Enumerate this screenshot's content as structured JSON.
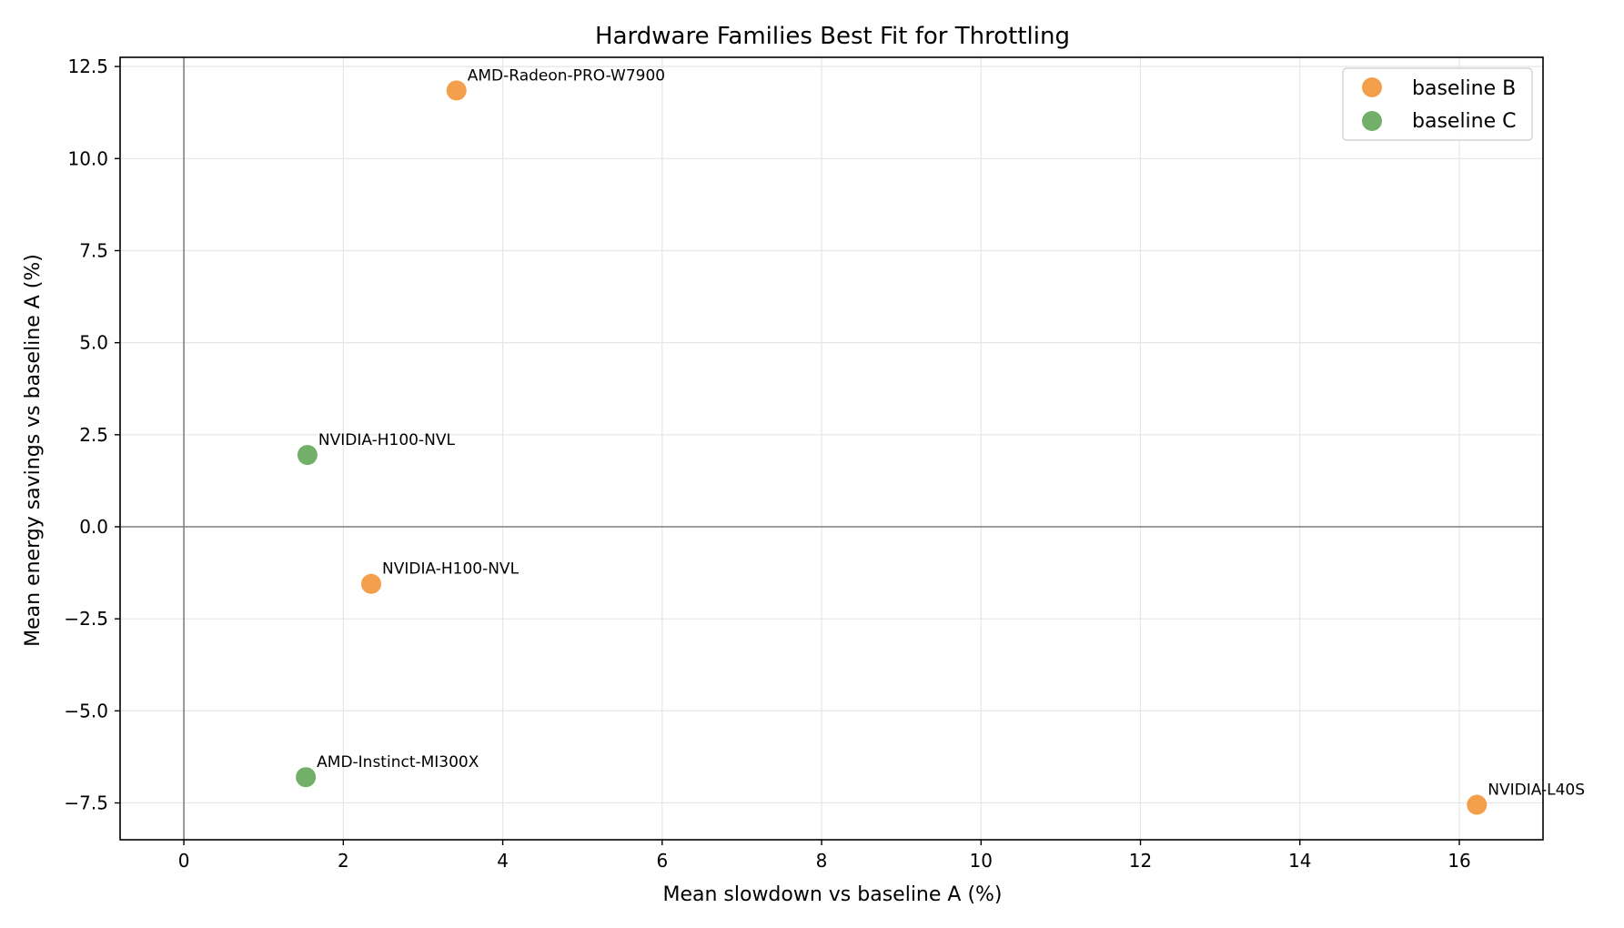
{
  "chart_data": {
    "type": "scatter",
    "title": "Hardware Families Best Fit for Throttling",
    "xlabel": "Mean slowdown vs baseline A (%)",
    "ylabel": "Mean energy savings vs baseline A (%)",
    "xlim": [
      -0.8,
      17.05
    ],
    "ylim": [
      -8.5,
      12.75
    ],
    "xticks": [
      0,
      2,
      4,
      6,
      8,
      10,
      12,
      14,
      16
    ],
    "xtick_labels": [
      "0",
      "2",
      "4",
      "6",
      "8",
      "10",
      "12",
      "14",
      "16"
    ],
    "yticks": [
      -7.5,
      -5.0,
      -2.5,
      0.0,
      2.5,
      5.0,
      7.5,
      10.0,
      12.5
    ],
    "ytick_labels": [
      "−7.5",
      "−5.0",
      "−2.5",
      "0.0",
      "2.5",
      "5.0",
      "7.5",
      "10.0",
      "12.5"
    ],
    "grid": true,
    "reference_lines": {
      "x": 0,
      "y": 0
    },
    "legend_position": "top-right",
    "series": [
      {
        "name": "baseline B",
        "color": "#f28e2b",
        "points": [
          {
            "x": 3.42,
            "y": 11.85,
            "label": "AMD-Radeon-PRO-W7900"
          },
          {
            "x": 2.35,
            "y": -1.55,
            "label": "NVIDIA-H100-NVL"
          },
          {
            "x": 16.22,
            "y": -7.55,
            "label": "NVIDIA-L40S"
          }
        ]
      },
      {
        "name": "baseline C",
        "color": "#59a14f",
        "points": [
          {
            "x": 1.55,
            "y": 1.95,
            "label": "NVIDIA-H100-NVL"
          },
          {
            "x": 1.53,
            "y": -6.8,
            "label": "AMD-Instinct-MI300X"
          }
        ]
      }
    ]
  }
}
